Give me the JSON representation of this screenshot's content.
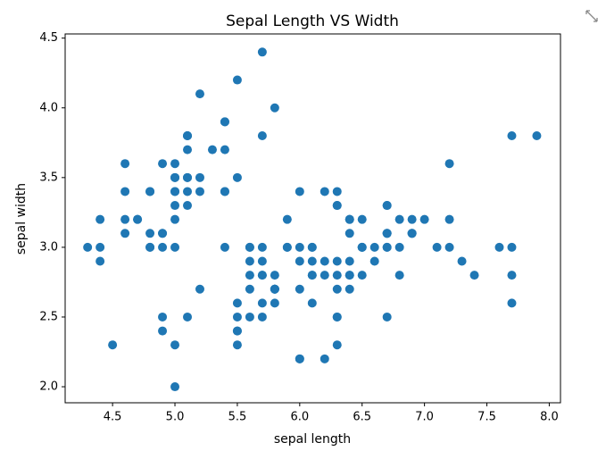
{
  "chart_data": {
    "type": "scatter",
    "title": "Sepal Length VS Width",
    "xlabel": "sepal length",
    "ylabel": "sepal width",
    "color": "#1f77b4",
    "x": [
      5.1,
      4.9,
      4.7,
      4.6,
      5.0,
      5.4,
      4.6,
      5.0,
      4.4,
      4.9,
      5.4,
      4.8,
      4.8,
      4.3,
      5.8,
      5.7,
      5.4,
      5.1,
      5.7,
      5.1,
      5.4,
      5.1,
      4.6,
      5.1,
      4.8,
      5.0,
      5.0,
      5.2,
      5.2,
      4.7,
      4.8,
      5.4,
      5.2,
      5.5,
      4.9,
      5.0,
      5.5,
      4.9,
      4.4,
      5.1,
      5.0,
      4.5,
      4.4,
      5.0,
      5.1,
      4.8,
      5.1,
      4.6,
      5.3,
      5.0,
      7.0,
      6.4,
      6.9,
      5.5,
      6.5,
      5.7,
      6.3,
      4.9,
      6.6,
      5.2,
      5.0,
      5.9,
      6.0,
      6.1,
      5.6,
      6.7,
      5.6,
      5.8,
      6.2,
      5.6,
      5.9,
      6.1,
      6.3,
      6.1,
      6.4,
      6.6,
      6.8,
      6.7,
      6.0,
      5.7,
      5.5,
      5.5,
      5.8,
      6.0,
      5.4,
      6.0,
      6.7,
      6.3,
      5.6,
      5.5,
      5.5,
      6.1,
      5.8,
      5.0,
      5.6,
      5.7,
      5.7,
      6.2,
      5.1,
      5.7,
      6.3,
      5.8,
      7.1,
      6.3,
      6.5,
      7.6,
      4.9,
      7.3,
      6.7,
      7.2,
      6.5,
      6.4,
      6.8,
      5.7,
      5.8,
      6.4,
      6.5,
      7.7,
      7.7,
      6.0,
      6.9,
      5.6,
      7.7,
      6.3,
      6.7,
      7.2,
      6.2,
      6.1,
      6.4,
      7.2,
      7.4,
      7.9,
      6.4,
      6.3,
      6.1,
      7.7,
      6.3,
      6.4,
      6.0,
      6.9,
      6.7,
      6.9,
      5.8,
      6.8,
      6.7,
      6.7,
      6.3,
      6.5,
      6.2,
      5.9
    ],
    "y": [
      3.5,
      3.0,
      3.2,
      3.1,
      3.6,
      3.9,
      3.4,
      3.4,
      2.9,
      3.1,
      3.7,
      3.4,
      3.0,
      3.0,
      4.0,
      4.4,
      3.9,
      3.5,
      3.8,
      3.8,
      3.4,
      3.7,
      3.6,
      3.3,
      3.4,
      3.0,
      3.4,
      3.5,
      3.4,
      3.2,
      3.1,
      3.4,
      4.1,
      4.2,
      3.1,
      3.2,
      3.5,
      3.6,
      3.0,
      3.4,
      3.5,
      2.3,
      3.2,
      3.5,
      3.8,
      3.0,
      3.8,
      3.2,
      3.7,
      3.3,
      3.2,
      3.2,
      3.1,
      2.3,
      2.8,
      2.8,
      3.3,
      2.4,
      2.9,
      2.7,
      2.0,
      3.0,
      2.2,
      2.9,
      2.9,
      3.1,
      3.0,
      2.7,
      2.2,
      2.5,
      3.2,
      2.8,
      2.5,
      2.8,
      2.9,
      3.0,
      2.8,
      3.0,
      2.9,
      2.6,
      2.4,
      2.4,
      2.7,
      2.7,
      3.0,
      3.4,
      3.1,
      2.3,
      3.0,
      2.5,
      2.6,
      3.0,
      2.6,
      2.3,
      2.7,
      3.0,
      2.9,
      2.9,
      2.5,
      2.8,
      3.3,
      2.7,
      3.0,
      2.9,
      3.0,
      3.0,
      2.5,
      2.9,
      2.5,
      3.6,
      3.2,
      2.7,
      3.0,
      2.5,
      2.8,
      3.2,
      3.0,
      3.8,
      2.6,
      2.2,
      3.2,
      2.8,
      2.8,
      2.7,
      3.3,
      3.2,
      2.8,
      3.0,
      2.8,
      3.0,
      2.8,
      3.8,
      2.8,
      2.8,
      2.6,
      3.0,
      3.4,
      3.1,
      3.0,
      3.1,
      3.1,
      3.1,
      2.7,
      3.2,
      3.3,
      3.0,
      2.5,
      3.0,
      3.4,
      3.0
    ],
    "xlim": [
      4.12,
      8.09
    ],
    "xticks": [
      4.5,
      {
        "value": 5,
        "label": "5.0"
      },
      5.5,
      {
        "value": 6,
        "label": "6.0"
      },
      6.5,
      {
        "value": 7,
        "label": "7.0"
      },
      7.5,
      {
        "value": 8,
        "label": "8.0"
      }
    ],
    "ylim": [
      1.885,
      4.53
    ],
    "yticks": [
      {
        "value": 2,
        "label": "2.0"
      },
      2.5,
      {
        "value": 3,
        "label": "3.0"
      },
      3.5,
      {
        "value": 4,
        "label": "4.0"
      },
      4.5
    ],
    "grid": false
  }
}
